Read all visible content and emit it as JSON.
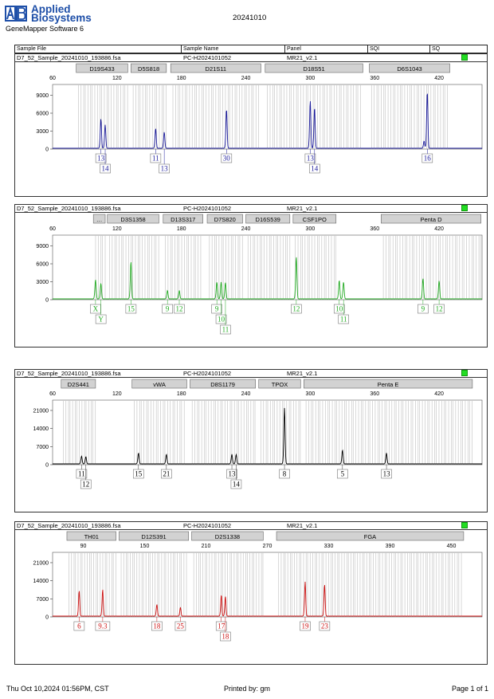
{
  "header": {
    "brand_line1": "Applied",
    "brand_line2": "Biosystems",
    "app_name": "GeneMapper Software 6",
    "report_title": "20241010"
  },
  "table_header": {
    "sample_file": "Sample File",
    "sample_name": "Sample Name",
    "panel": "Panel",
    "sqi": "SQI",
    "sq": "SQ"
  },
  "footer": {
    "datetime": "Thu Oct 10,2024 01:56PM, CST",
    "printed_by": "Printed by: gm",
    "page": "Page 1 of 1"
  },
  "colors": {
    "status_green": "#22dd22"
  },
  "panels": [
    {
      "sample_file": "D7_52_Sample_20241010_193886.fsa",
      "sample_name": "PC-H2024101052",
      "panel_name": "MR21_v2.1",
      "color": "#1a1a9a",
      "x_range": [
        60,
        460
      ],
      "x_ticks": [
        60,
        120,
        180,
        240,
        300,
        360,
        420
      ],
      "y_max": 10800,
      "y_ticks": [
        0,
        3000,
        6000,
        9000
      ],
      "markers": [
        {
          "name": "D19S433",
          "start": 82,
          "end": 130
        },
        {
          "name": "D5S818",
          "start": 133,
          "end": 166
        },
        {
          "name": "D21S11",
          "start": 170,
          "end": 254
        },
        {
          "name": "D18S51",
          "start": 258,
          "end": 349
        },
        {
          "name": "D6S1043",
          "start": 355,
          "end": 430
        }
      ],
      "peaks": [
        {
          "x": 105,
          "h": 4900
        },
        {
          "x": 109,
          "h": 3900
        },
        {
          "x": 156,
          "h": 3300
        },
        {
          "x": 164,
          "h": 2700
        },
        {
          "x": 222,
          "h": 6500
        },
        {
          "x": 300,
          "h": 7900
        },
        {
          "x": 304,
          "h": 6800
        },
        {
          "x": 406,
          "h": 1200
        },
        {
          "x": 409,
          "h": 9400
        }
      ],
      "alleles": [
        {
          "x": 105,
          "label": "13",
          "row": 0
        },
        {
          "x": 109,
          "label": "14",
          "row": 1
        },
        {
          "x": 156,
          "label": "11",
          "row": 0
        },
        {
          "x": 164,
          "label": "13",
          "row": 1
        },
        {
          "x": 222,
          "label": "30",
          "row": 0
        },
        {
          "x": 300,
          "label": "13",
          "row": 0
        },
        {
          "x": 304,
          "label": "14",
          "row": 1
        },
        {
          "x": 409,
          "label": "16",
          "row": 0
        }
      ]
    },
    {
      "sample_file": "D7_52_Sample_20241010_193886.fsa",
      "sample_name": "PC-H2024101052",
      "panel_name": "MR21_v2.1",
      "color": "#22aa22",
      "x_range": [
        60,
        460
      ],
      "x_ticks": [
        60,
        120,
        180,
        240,
        300,
        360,
        420
      ],
      "y_max": 10800,
      "y_ticks": [
        0,
        3000,
        6000,
        9000
      ],
      "markers": [
        {
          "name": "...",
          "start": 98,
          "end": 109,
          "label": "…"
        },
        {
          "name": "D3S1358",
          "start": 111,
          "end": 159
        },
        {
          "name": "D13S317",
          "start": 163,
          "end": 200
        },
        {
          "name": "D7S820",
          "start": 204,
          "end": 237
        },
        {
          "name": "D16S539",
          "start": 240,
          "end": 281
        },
        {
          "name": "CSF1PO",
          "start": 284,
          "end": 324
        },
        {
          "name": "Penta D",
          "start": 366,
          "end": 459
        }
      ],
      "peaks": [
        {
          "x": 100,
          "h": 3200
        },
        {
          "x": 105,
          "h": 2600
        },
        {
          "x": 133,
          "h": 6200
        },
        {
          "x": 167,
          "h": 1400
        },
        {
          "x": 178,
          "h": 1400
        },
        {
          "x": 213,
          "h": 2800
        },
        {
          "x": 217,
          "h": 2800
        },
        {
          "x": 221,
          "h": 2700
        },
        {
          "x": 287,
          "h": 7000
        },
        {
          "x": 327,
          "h": 3100
        },
        {
          "x": 331,
          "h": 2800
        },
        {
          "x": 405,
          "h": 3400
        },
        {
          "x": 420,
          "h": 3000
        }
      ],
      "alleles": [
        {
          "x": 100,
          "label": "X",
          "row": 0
        },
        {
          "x": 105,
          "label": "Y",
          "row": 1
        },
        {
          "x": 133,
          "label": "15",
          "row": 0
        },
        {
          "x": 167,
          "label": "9",
          "row": 0
        },
        {
          "x": 178,
          "label": "12",
          "row": 0
        },
        {
          "x": 213,
          "label": "9",
          "row": 0
        },
        {
          "x": 217,
          "label": "10",
          "row": 1
        },
        {
          "x": 221,
          "label": "11",
          "row": 2
        },
        {
          "x": 287,
          "label": "12",
          "row": 0
        },
        {
          "x": 327,
          "label": "10",
          "row": 0
        },
        {
          "x": 331,
          "label": "11",
          "row": 1
        },
        {
          "x": 405,
          "label": "9",
          "row": 0
        },
        {
          "x": 420,
          "label": "12",
          "row": 0
        }
      ]
    },
    {
      "sample_file": "D7_52_Sample_20241010_193886.fsa",
      "sample_name": "PC-H2024101052",
      "panel_name": "MR21_v2.1",
      "color": "#000000",
      "x_range": [
        60,
        460
      ],
      "x_ticks": [
        60,
        120,
        180,
        240,
        300,
        360,
        420
      ],
      "y_max": 25000,
      "y_ticks": [
        0,
        7000,
        14000,
        21000
      ],
      "markers": [
        {
          "name": "D2S441",
          "start": 68,
          "end": 100
        },
        {
          "name": "vWA",
          "start": 134,
          "end": 185
        },
        {
          "name": "D8S1179",
          "start": 188,
          "end": 249
        },
        {
          "name": "TPOX",
          "start": 252,
          "end": 291
        },
        {
          "name": "Penta E",
          "start": 294,
          "end": 451
        }
      ],
      "peaks": [
        {
          "x": 87,
          "h": 3000
        },
        {
          "x": 91,
          "h": 2800
        },
        {
          "x": 140,
          "h": 4200
        },
        {
          "x": 166,
          "h": 3700
        },
        {
          "x": 227,
          "h": 3700
        },
        {
          "x": 231,
          "h": 3600
        },
        {
          "x": 276,
          "h": 21500
        },
        {
          "x": 330,
          "h": 5300
        },
        {
          "x": 371,
          "h": 4200
        }
      ],
      "alleles": [
        {
          "x": 87,
          "label": "11",
          "row": 0
        },
        {
          "x": 91,
          "label": "12",
          "row": 1
        },
        {
          "x": 140,
          "label": "15",
          "row": 0
        },
        {
          "x": 166,
          "label": "21",
          "row": 0
        },
        {
          "x": 227,
          "label": "13",
          "row": 0
        },
        {
          "x": 231,
          "label": "14",
          "row": 1
        },
        {
          "x": 276,
          "label": "8",
          "row": 0
        },
        {
          "x": 330,
          "label": "5",
          "row": 0
        },
        {
          "x": 371,
          "label": "13",
          "row": 0
        }
      ]
    },
    {
      "sample_file": "D7_52_Sample_20241010_193886.fsa",
      "sample_name": "PC-H2024101052",
      "panel_name": "MR21_v2.1",
      "color": "#cc1111",
      "x_range": [
        60,
        480
      ],
      "x_ticks": [
        90,
        150,
        210,
        270,
        330,
        390,
        450
      ],
      "y_max": 25000,
      "y_ticks": [
        0,
        7000,
        14000,
        21000
      ],
      "markers": [
        {
          "name": "TH01",
          "start": 74,
          "end": 122
        },
        {
          "name": "D12S391",
          "start": 125,
          "end": 193
        },
        {
          "name": "D2S1338",
          "start": 196,
          "end": 266
        },
        {
          "name": "FGA",
          "start": 279,
          "end": 462
        }
      ],
      "peaks": [
        {
          "x": 86,
          "h": 9800
        },
        {
          "x": 109,
          "h": 10300
        },
        {
          "x": 162,
          "h": 4500
        },
        {
          "x": 185,
          "h": 3400
        },
        {
          "x": 225,
          "h": 8200
        },
        {
          "x": 229,
          "h": 7600
        },
        {
          "x": 307,
          "h": 13200
        },
        {
          "x": 326,
          "h": 12200
        }
      ],
      "alleles": [
        {
          "x": 86,
          "label": "6",
          "row": 0
        },
        {
          "x": 109,
          "label": "9.3",
          "row": 0
        },
        {
          "x": 162,
          "label": "18",
          "row": 0
        },
        {
          "x": 185,
          "label": "25",
          "row": 0
        },
        {
          "x": 225,
          "label": "17",
          "row": 0
        },
        {
          "x": 229,
          "label": "18",
          "row": 1
        },
        {
          "x": 307,
          "label": "19",
          "row": 0
        },
        {
          "x": 326,
          "label": "23",
          "row": 0
        }
      ]
    }
  ]
}
